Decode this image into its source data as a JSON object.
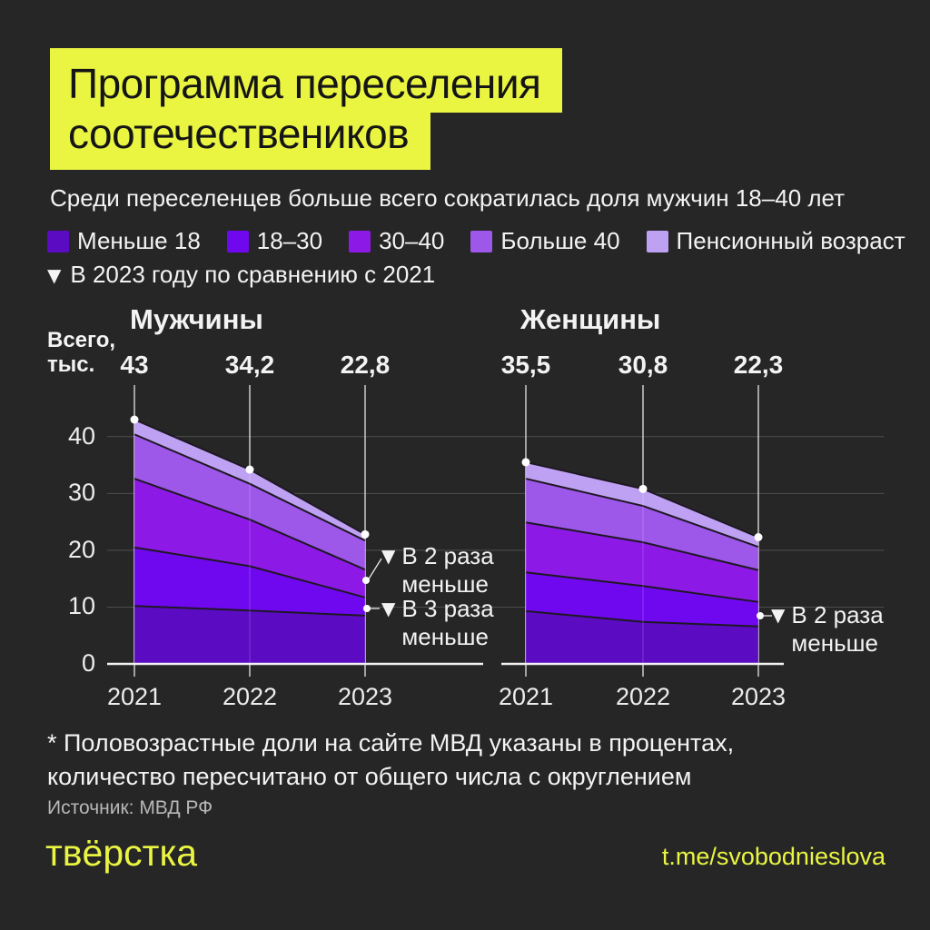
{
  "header": {
    "title_line1": "Программа переселения",
    "title_line2": "соотечествеников"
  },
  "subtitle": "Среди переселенцев больше всего сократилась доля мужчин 18–40 лет",
  "legend": {
    "items": [
      {
        "label": "Меньше 18",
        "color": "#5b0bc2"
      },
      {
        "label": "18–30",
        "color": "#6f08ef"
      },
      {
        "label": "30–40",
        "color": "#8d19e6"
      },
      {
        "label": "Больше 40",
        "color": "#9d57e9"
      },
      {
        "label": "Пенсионный возраст",
        "color": "#bfa1f3"
      }
    ]
  },
  "note": {
    "marker": "▼",
    "text": "В 2023 году по сравнению с 2021"
  },
  "chart_data": {
    "type": "area",
    "stacked": true,
    "unit_label": "Всего,\nтыс.",
    "x": [
      "2021",
      "2022",
      "2023"
    ],
    "yticks": [
      0,
      10,
      20,
      30,
      40
    ],
    "ylim": [
      0,
      45
    ],
    "grid": true,
    "charts": [
      {
        "title": "Мужчины",
        "totals": [
          43,
          34.2,
          22.8
        ],
        "totals_labels": [
          "43",
          "34,2",
          "22,8"
        ],
        "series": [
          {
            "name": "Меньше 18",
            "values": [
              10.2,
              9.4,
              8.5
            ]
          },
          {
            "name": "18–30",
            "values": [
              10.3,
              7.8,
              3.2
            ]
          },
          {
            "name": "30–40",
            "values": [
              12.1,
              8.2,
              4.9
            ]
          },
          {
            "name": "Больше 40",
            "values": [
              7.8,
              6.3,
              5.1
            ]
          },
          {
            "name": "Пенсионный возраст",
            "values": [
              2.6,
              2.5,
              1.1
            ]
          }
        ],
        "annotations": [
          {
            "marker": "▼",
            "text": "В 2 раза меньше",
            "x": "2023",
            "value": 14.4
          },
          {
            "marker": "▼",
            "text": "В 3 раза меньше",
            "x": "2023",
            "value": 9.8
          }
        ]
      },
      {
        "title": "Женщины",
        "totals": [
          35.5,
          30.8,
          22.3
        ],
        "totals_labels": [
          "35,5",
          "30,8",
          "22,3"
        ],
        "series": [
          {
            "name": "Меньше 18",
            "values": [
              9.3,
              7.4,
              6.6
            ]
          },
          {
            "name": "18–30",
            "values": [
              6.8,
              6.3,
              4.3
            ]
          },
          {
            "name": "30–40",
            "values": [
              8.8,
              7.7,
              5.6
            ]
          },
          {
            "name": "Больше 40",
            "values": [
              7.7,
              6.4,
              4.1
            ]
          },
          {
            "name": "Пенсионный возраст",
            "values": [
              2.9,
              3.0,
              1.7
            ]
          }
        ],
        "annotations": [
          {
            "marker": "▼",
            "text": "В 2 раза меньше",
            "x": "2023",
            "value": 8.5
          }
        ]
      }
    ]
  },
  "footnote": "* Половозрастные доли на сайте МВД указаны в процентах,\nколичество пересчитано от общего числа с округлением",
  "source": "Источник: МВД РФ",
  "footer": {
    "logo_text": "твёрстка",
    "telegram_handle": "t.me/svobodnieslova"
  },
  "colors": {
    "background": "#262626",
    "accent_yellow": "#eaf542",
    "text_white": "#f3f3f3",
    "muted_gray": "#b8b8b8",
    "gridline": "#4f4f4f"
  }
}
